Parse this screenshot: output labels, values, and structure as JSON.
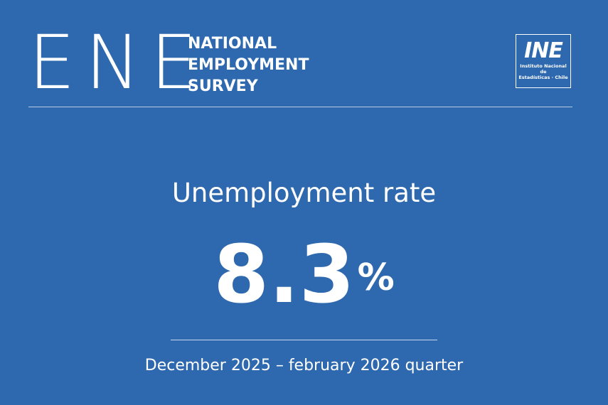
{
  "header": {
    "acronym": "ENE",
    "survey_lines": [
      "NATIONAL",
      "EMPLOYMENT",
      "SURVEY"
    ]
  },
  "logo": {
    "mark": "INE",
    "sub_lines": [
      "Instituto Nacional de",
      "Estadísticas · Chile"
    ]
  },
  "main": {
    "title": "Unemployment rate",
    "value": "8.3",
    "unit": "%",
    "period": "December 2025 – february 2026 quarter"
  },
  "colors": {
    "background": "#2e68ae",
    "text": "#ffffff"
  }
}
